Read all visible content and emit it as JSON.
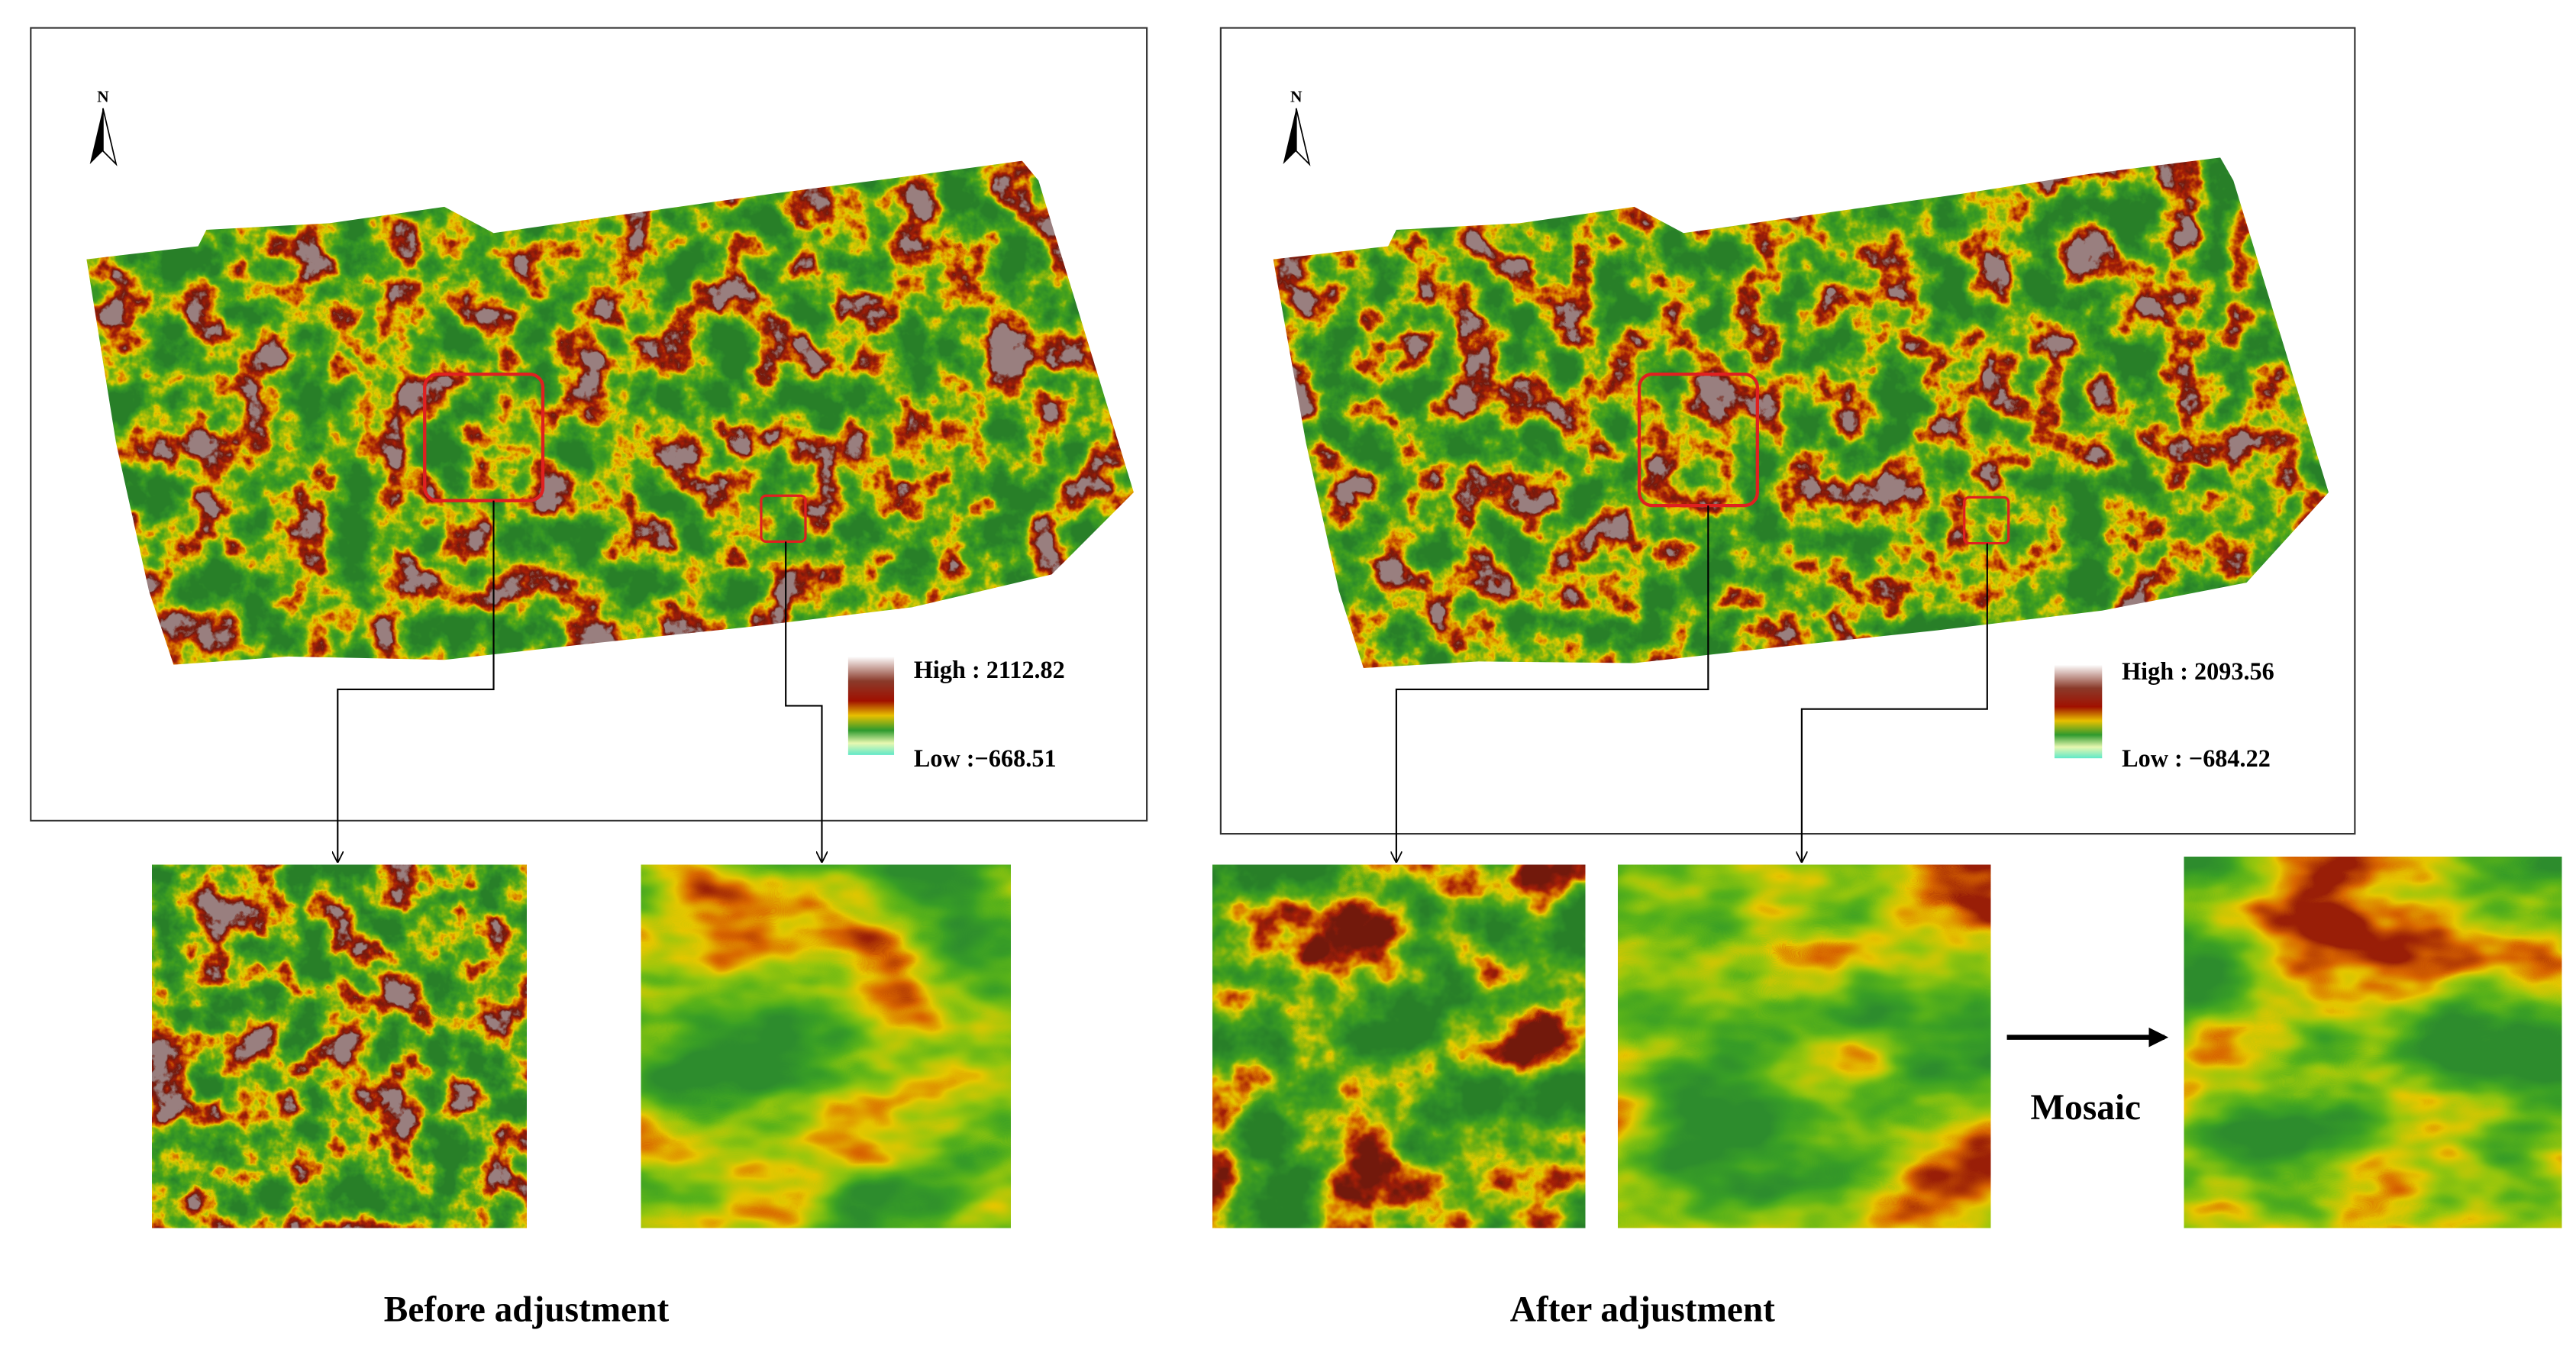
{
  "panels": [
    {
      "north": "N",
      "legend": {
        "high": "High : 2112.82",
        "low": "Low :−668.51"
      }
    },
    {
      "north": "N",
      "legend": {
        "high": "High : 2093.56",
        "low": "Low : −684.22"
      }
    }
  ],
  "mosaic_label": "Mosaic",
  "captions": [
    "Before adjustment",
    "After adjustment"
  ]
}
